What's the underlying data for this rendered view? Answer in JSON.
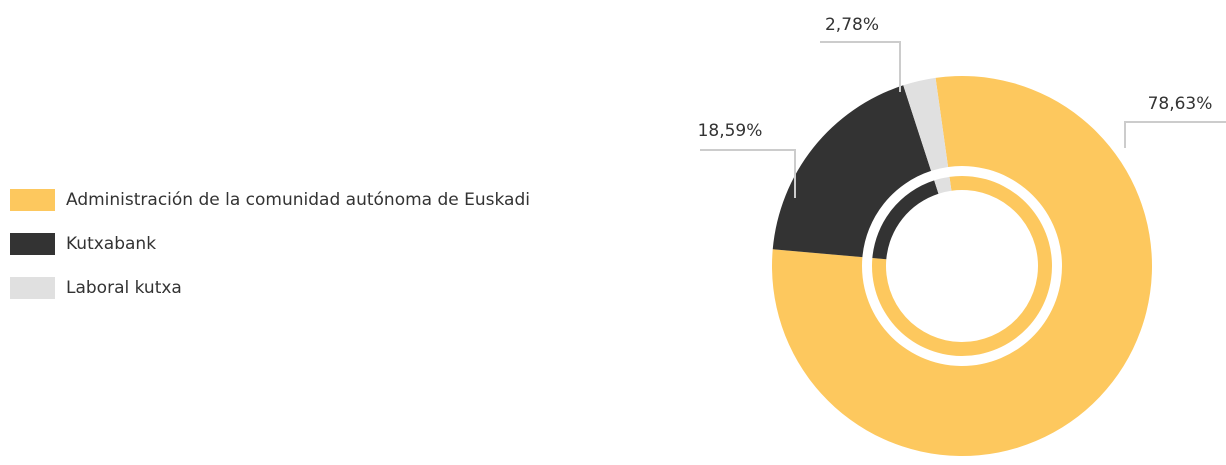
{
  "chart_data": {
    "type": "donut",
    "categories": [
      "Administración de la comunidad autónoma de Euskadi",
      "Kutxabank",
      "Laboral kutxa"
    ],
    "values": [
      78.63,
      18.59,
      2.78
    ],
    "value_labels": [
      "78,63%",
      "18,59%",
      "2,78%"
    ],
    "colors": [
      "#fdc85e",
      "#333333",
      "#e0e0e0"
    ],
    "legend": "left"
  }
}
